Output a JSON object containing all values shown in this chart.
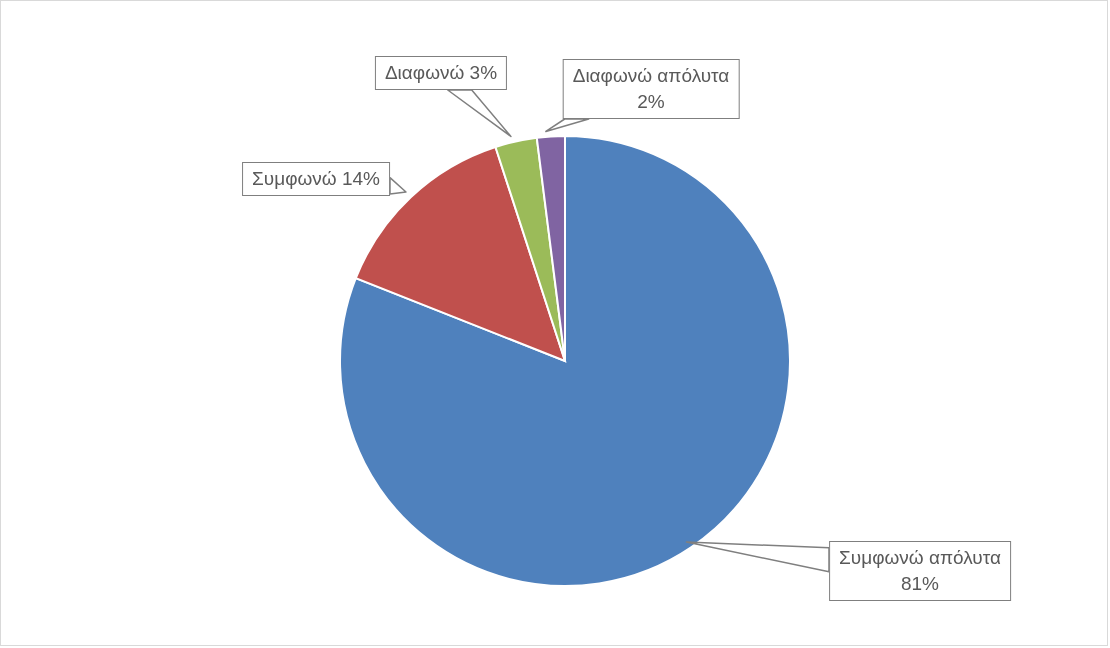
{
  "chart_data": {
    "type": "pie",
    "categories": [
      "Συμφωνώ απόλυτα",
      "Συμφωνώ",
      "Διαφωνώ",
      "Διαφωνώ απόλυτα"
    ],
    "values": [
      81,
      14,
      3,
      2
    ],
    "colors": [
      "#4f81bd",
      "#c0504d",
      "#9bbb59",
      "#8064a2"
    ],
    "value_labels": [
      "81%",
      "14%",
      "3%",
      "2%"
    ]
  }
}
